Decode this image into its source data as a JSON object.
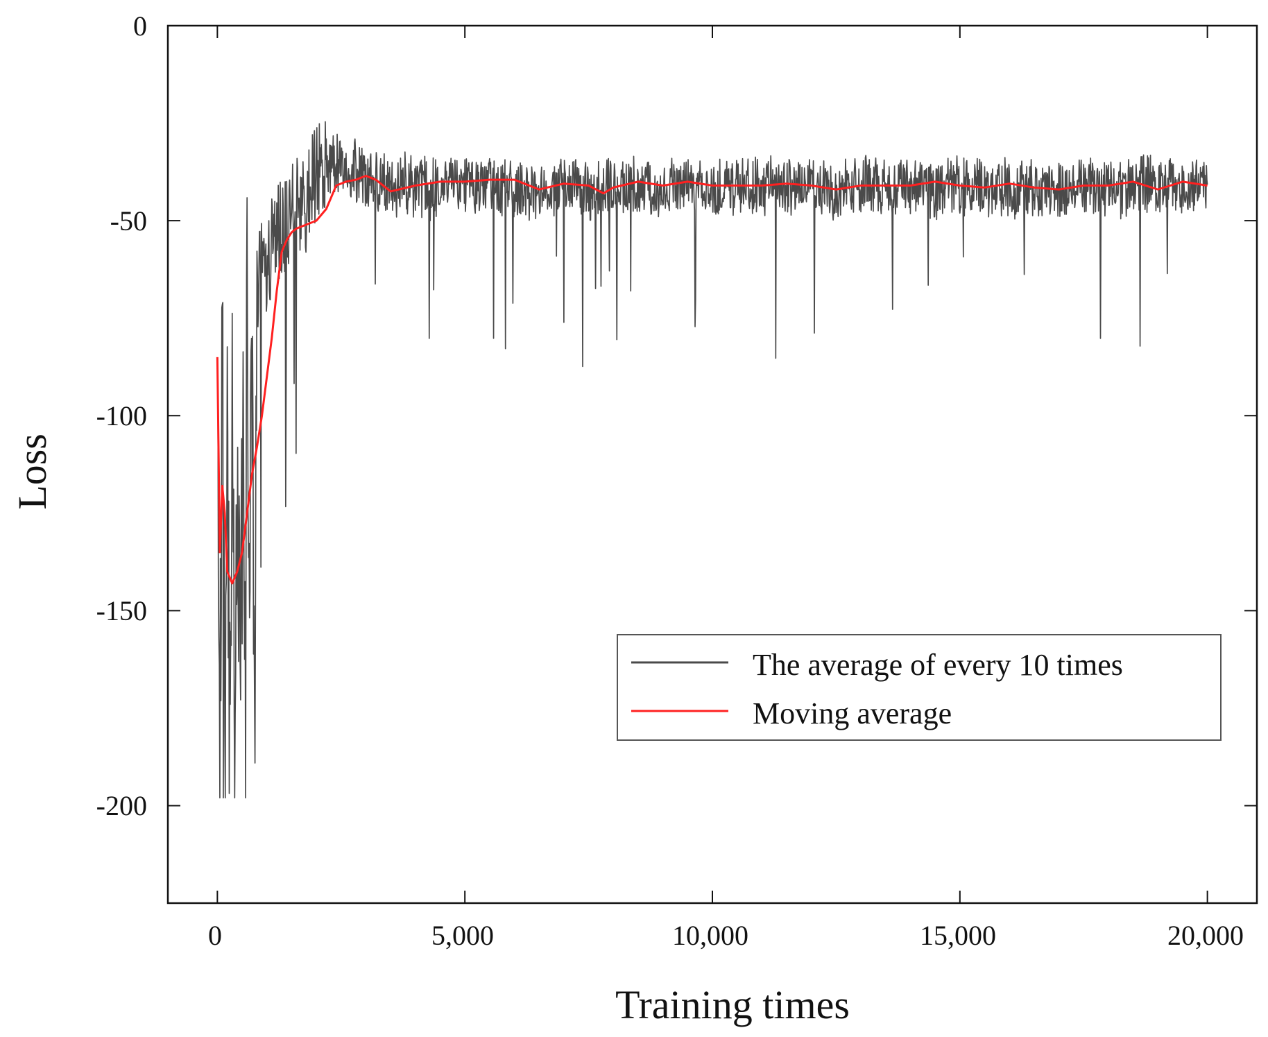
{
  "chart_data": {
    "type": "line",
    "title": "",
    "xlabel": "Training times",
    "ylabel": "Loss",
    "xlim": [
      -1000,
      21000
    ],
    "ylim": [
      -225,
      0
    ],
    "xticks": [
      0,
      5000,
      10000,
      15000,
      20000
    ],
    "xtick_labels": [
      "0",
      "5,000",
      "10,000",
      "15,000",
      "20,000"
    ],
    "yticks": [
      0,
      -50,
      -100,
      -150,
      -200
    ],
    "ytick_labels": [
      "0",
      "-50",
      "-100",
      "-150",
      "-200"
    ],
    "grid": false,
    "legend_position": "lower-right",
    "series": [
      {
        "name": "The average of every 10 times",
        "color": "#4a4a4a",
        "noise_amplitude": 7,
        "x": [
          0,
          50,
          100,
          150,
          200,
          250,
          300,
          350,
          400,
          450,
          500,
          550,
          600,
          650,
          700,
          750,
          800,
          900,
          1000,
          1100,
          1200,
          1300,
          1400,
          1500,
          1600,
          1700,
          1800,
          1900,
          2000,
          2200,
          2400,
          2600,
          2800,
          3000,
          3200,
          3400,
          3600,
          3800,
          4000,
          4500,
          5000,
          5500,
          6000,
          6500,
          7000,
          7500,
          8000,
          8500,
          9000,
          9500,
          10000,
          10500,
          11000,
          11500,
          12000,
          12500,
          13000,
          13500,
          14000,
          14500,
          15000,
          15500,
          16000,
          16500,
          17000,
          17500,
          18000,
          18500,
          19000,
          19500,
          20000
        ],
        "values": [
          -88,
          -187,
          -75,
          -192,
          -120,
          -175,
          -90,
          -190,
          -110,
          -168,
          -88,
          -152,
          -80,
          -140,
          -60,
          -185,
          -72,
          -55,
          -62,
          -58,
          -54,
          -52,
          -50,
          -48,
          -47,
          -46,
          -45,
          -40,
          -38,
          -36,
          -35,
          -37,
          -38,
          -39,
          -40,
          -40,
          -41,
          -41,
          -41,
          -41,
          -41,
          -41,
          -42,
          -42,
          -41,
          -42,
          -41,
          -41,
          -42,
          -41,
          -42,
          -41,
          -41,
          -42,
          -41,
          -42,
          -41,
          -42,
          -41,
          -42,
          -41,
          -41,
          -42,
          -41,
          -42,
          -41,
          -42,
          -41,
          -41,
          -42,
          -41
        ]
      },
      {
        "name": "Moving average",
        "color": "#ff2020",
        "x": [
          0,
          50,
          100,
          150,
          200,
          300,
          400,
          500,
          600,
          700,
          800,
          900,
          1000,
          1100,
          1200,
          1300,
          1400,
          1500,
          1600,
          1800,
          2000,
          2200,
          2400,
          2600,
          2800,
          3000,
          3200,
          3500,
          4000,
          4500,
          5000,
          5500,
          6000,
          6500,
          7000,
          7500,
          7800,
          8000,
          8500,
          9000,
          9500,
          10000,
          10500,
          11000,
          11500,
          12000,
          12500,
          13000,
          13500,
          14000,
          14500,
          15000,
          15500,
          16000,
          16500,
          17000,
          17500,
          18000,
          18500,
          19000,
          19500,
          20000
        ],
        "values": [
          -85,
          -135,
          -118,
          -125,
          -140,
          -143,
          -140,
          -135,
          -125,
          -115,
          -108,
          -100,
          -90,
          -80,
          -68,
          -58,
          -55,
          -53,
          -52,
          -51,
          -50,
          -47,
          -41,
          -40,
          -39.5,
          -38.5,
          -39.5,
          -42.5,
          -41,
          -40,
          -40,
          -39.5,
          -39.5,
          -42,
          -40.5,
          -41,
          -43,
          -41.5,
          -40,
          -41,
          -40,
          -41,
          -41,
          -41,
          -40.5,
          -41,
          -42,
          -41,
          -41,
          -41,
          -40,
          -41,
          -41.5,
          -40.5,
          -41.5,
          -42,
          -41,
          -41,
          -40,
          -42,
          -40,
          -41
        ]
      }
    ]
  }
}
